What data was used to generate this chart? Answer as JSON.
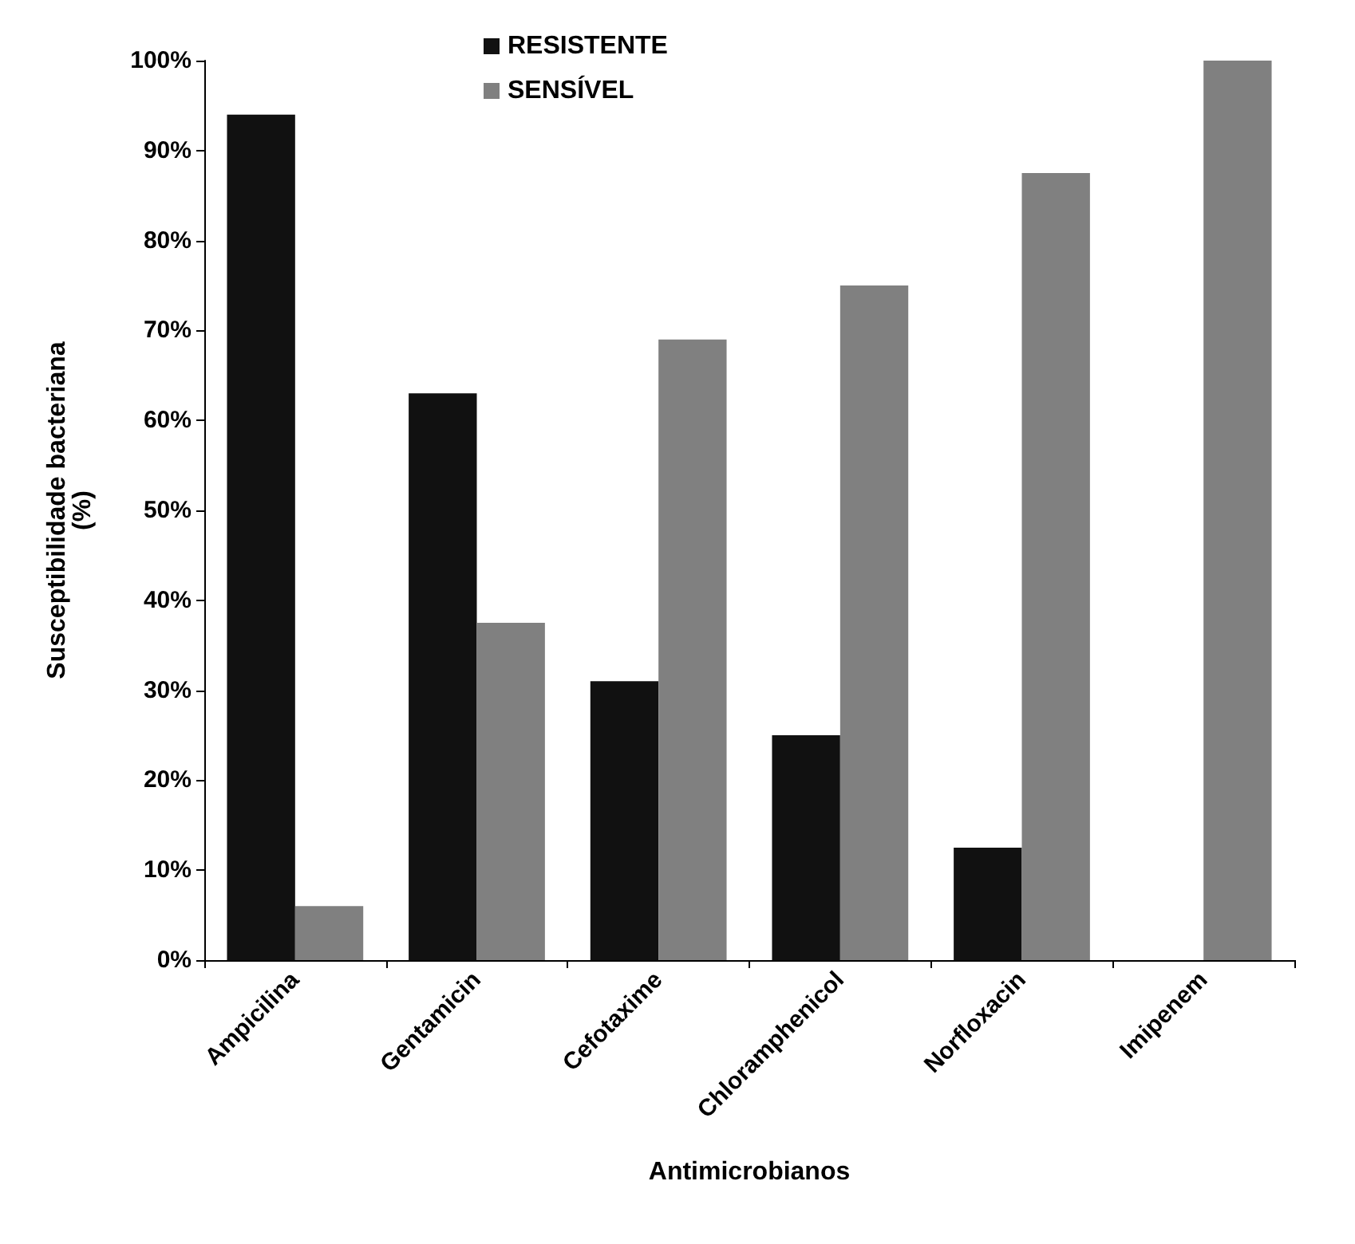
{
  "chart_data": {
    "type": "bar",
    "xlabel": "Antimicrobianos",
    "ylabel": "Susceptibilidade bacteriana\n(%)",
    "categories": [
      "Ampicilina",
      "Gentamicin",
      "Cefotaxime",
      "Chloramphenicol",
      "Norfloxacin",
      "Imipenem"
    ],
    "series": [
      {
        "name": "RESISTENTE",
        "color": "#111111",
        "values": [
          94,
          63,
          31,
          25,
          12.5,
          0
        ]
      },
      {
        "name": "SENSÍVEL",
        "color": "#808080",
        "values": [
          6,
          37.5,
          69,
          75,
          87.5,
          100
        ]
      }
    ],
    "ylim": [
      0,
      100
    ],
    "yticks": [
      {
        "value": 0,
        "label": "0%"
      },
      {
        "value": 10,
        "label": "10%"
      },
      {
        "value": 20,
        "label": "20%"
      },
      {
        "value": 30,
        "label": "30%"
      },
      {
        "value": 40,
        "label": "40%"
      },
      {
        "value": 50,
        "label": "50%"
      },
      {
        "value": 60,
        "label": "60%"
      },
      {
        "value": 70,
        "label": "70%"
      },
      {
        "value": 80,
        "label": "80%"
      },
      {
        "value": 90,
        "label": "90%"
      },
      {
        "value": 100,
        "label": "100%"
      }
    ],
    "grid": false,
    "legend": "top"
  }
}
